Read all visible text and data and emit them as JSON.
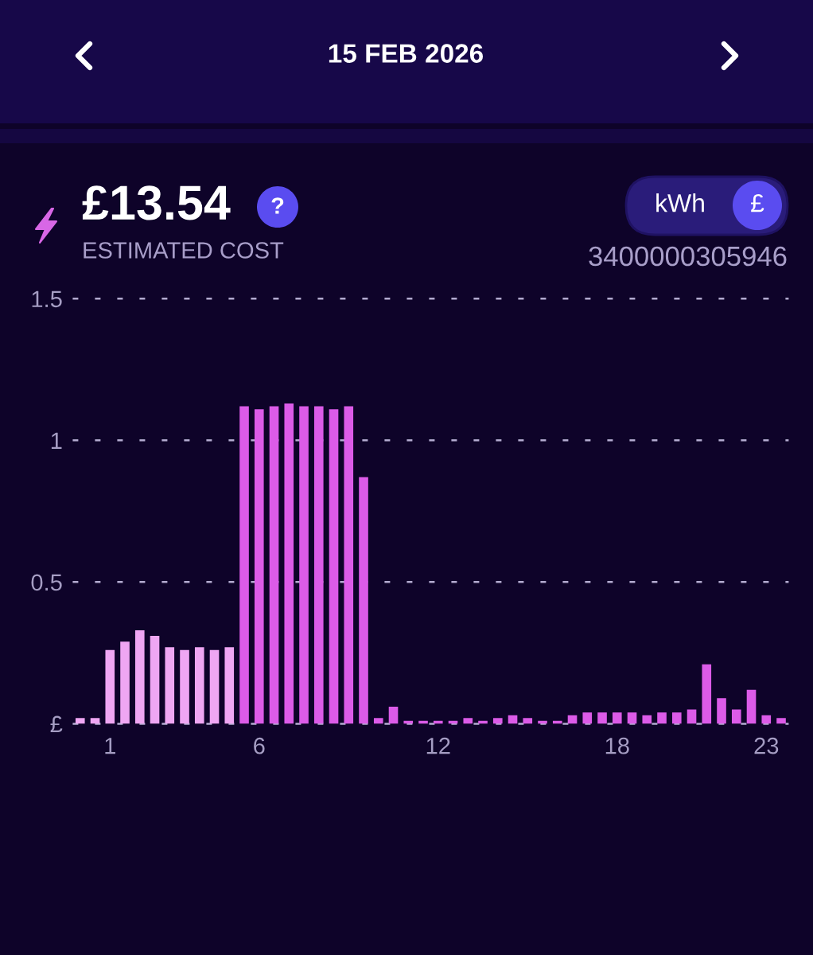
{
  "chart_data": {
    "type": "bar",
    "title": "15 FEB 2026",
    "categories": [
      null,
      null,
      "1",
      null,
      null,
      null,
      null,
      null,
      null,
      null,
      null,
      null,
      "6",
      null,
      null,
      null,
      null,
      null,
      null,
      null,
      null,
      null,
      null,
      null,
      "12",
      null,
      null,
      null,
      null,
      null,
      null,
      null,
      null,
      null,
      null,
      null,
      "18",
      null,
      null,
      null,
      null,
      null,
      null,
      null,
      null,
      null,
      "23",
      null
    ],
    "values": [
      0.02,
      0.02,
      0.26,
      0.29,
      0.33,
      0.31,
      0.27,
      0.26,
      0.27,
      0.26,
      0.27,
      1.12,
      1.11,
      1.12,
      1.13,
      1.12,
      1.12,
      1.11,
      1.12,
      0.87,
      0.02,
      0.06,
      0.01,
      0.01,
      0.01,
      0.01,
      0.02,
      0.01,
      0.02,
      0.03,
      0.02,
      0.01,
      0.01,
      0.03,
      0.04,
      0.04,
      0.04,
      0.04,
      0.03,
      0.04,
      0.04,
      0.05,
      0.21,
      0.09,
      0.05,
      0.12,
      0.03,
      0.02
    ],
    "colors": [
      "#efa6f3",
      "#efa6f3",
      "#efa6f3",
      "#efa6f3",
      "#efa6f3",
      "#efa6f3",
      "#efa6f3",
      "#efa6f3",
      "#efa6f3",
      "#efa6f3",
      "#efa6f3",
      "#dc5be8",
      "#dc5be8",
      "#dc5be8",
      "#dc5be8",
      "#dc5be8",
      "#dc5be8",
      "#dc5be8",
      "#dc5be8",
      "#dc5be8",
      "#dc5be8",
      "#dc5be8",
      "#dc5be8",
      "#dc5be8",
      "#dc5be8",
      "#dc5be8",
      "#dc5be8",
      "#dc5be8",
      "#dc5be8",
      "#dc5be8",
      "#dc5be8",
      "#dc5be8",
      "#dc5be8",
      "#dc5be8",
      "#dc5be8",
      "#dc5be8",
      "#dc5be8",
      "#dc5be8",
      "#dc5be8",
      "#dc5be8",
      "#dc5be8",
      "#dc5be8",
      "#dc5be8",
      "#dc5be8",
      "#dc5be8",
      "#dc5be8",
      "#dc5be8",
      "#dc5be8"
    ],
    "ylim": [
      0,
      1.5
    ],
    "yticks": [
      {
        "value": 0,
        "label": "£"
      },
      0.5,
      1,
      1.5
    ],
    "grid": "y",
    "annotations": [
      "£13.54",
      "?",
      "ESTIMATED COST",
      "kWh",
      "£",
      "3400000305946"
    ]
  }
}
